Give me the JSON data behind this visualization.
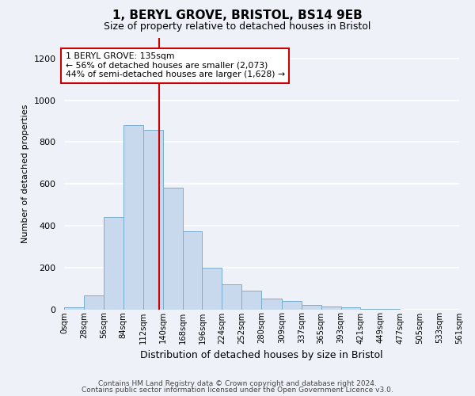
{
  "title": "1, BERYL GROVE, BRISTOL, BS14 9EB",
  "subtitle": "Size of property relative to detached houses in Bristol",
  "xlabel": "Distribution of detached houses by size in Bristol",
  "ylabel": "Number of detached properties",
  "bar_color": "#c8d9ee",
  "bar_edge_color": "#7aadcf",
  "background_color": "#eef2f8",
  "grid_color": "#ffffff",
  "property_line_color": "#cc0000",
  "property_size": 135,
  "annotation_text": "1 BERYL GROVE: 135sqm\n← 56% of detached houses are smaller (2,073)\n44% of semi-detached houses are larger (1,628) →",
  "footer_line1": "Contains HM Land Registry data © Crown copyright and database right 2024.",
  "footer_line2": "Contains public sector information licensed under the Open Government Licence v3.0.",
  "bin_labels": [
    "0sqm",
    "28sqm",
    "56sqm",
    "84sqm",
    "112sqm",
    "140sqm",
    "168sqm",
    "196sqm",
    "224sqm",
    "252sqm",
    "280sqm",
    "309sqm",
    "337sqm",
    "365sqm",
    "393sqm",
    "421sqm",
    "449sqm",
    "477sqm",
    "505sqm",
    "533sqm",
    "561sqm"
  ],
  "bar_heights": [
    10,
    65,
    440,
    880,
    860,
    580,
    375,
    200,
    120,
    88,
    50,
    38,
    20,
    12,
    8,
    3,
    1,
    0,
    0,
    0
  ],
  "ylim": [
    0,
    1300
  ],
  "yticks": [
    0,
    200,
    400,
    600,
    800,
    1000,
    1200
  ],
  "bin_edges": [
    0,
    28,
    56,
    84,
    112,
    140,
    168,
    196,
    224,
    252,
    280,
    309,
    337,
    365,
    393,
    421,
    449,
    477,
    505,
    533,
    561
  ]
}
